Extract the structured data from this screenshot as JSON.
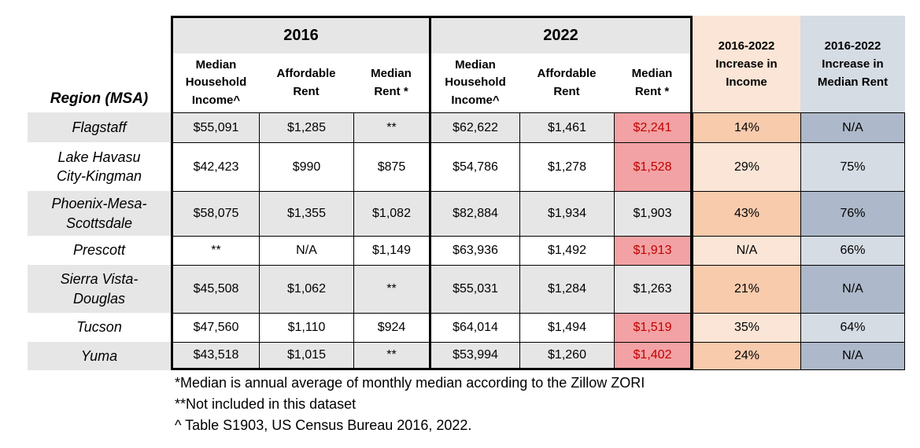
{
  "table": {
    "region_header": "Region (MSA)",
    "groups": [
      {
        "label": "2016",
        "columns": [
          "Median Household Income^",
          "Affordable Rent",
          "Median Rent *"
        ]
      },
      {
        "label": "2022",
        "columns": [
          "Median Household Income^",
          "Affordable Rent",
          "Median Rent *"
        ]
      }
    ],
    "increase_income_header": "2016-2022 Increase in Income",
    "increase_rent_header": "2016-2022 Increase in Median Rent",
    "rows": [
      {
        "region": "Flagstaff",
        "y2016_income": "$55,091",
        "y2016_affordable": "$1,285",
        "y2016_median": "**",
        "y2022_income": "$62,622",
        "y2022_affordable": "$1,461",
        "y2022_median": "$2,241",
        "income_increase": "14%",
        "rent_increase": "N/A"
      },
      {
        "region": "Lake Havasu City-Kingman",
        "y2016_income": "$42,423",
        "y2016_affordable": "$990",
        "y2016_median": "$875",
        "y2022_income": "$54,786",
        "y2022_affordable": "$1,278",
        "y2022_median": "$1,528",
        "income_increase": "29%",
        "rent_increase": "75%"
      },
      {
        "region": "Phoenix-Mesa-Scottsdale",
        "y2016_income": "$58,075",
        "y2016_affordable": "$1,355",
        "y2016_median": "$1,082",
        "y2022_income": "$82,884",
        "y2022_affordable": "$1,934",
        "y2022_median": "$1,903",
        "income_increase": "43%",
        "rent_increase": "76%"
      },
      {
        "region": "Prescott",
        "y2016_income": "**",
        "y2016_affordable": "N/A",
        "y2016_median": "$1,149",
        "y2022_income": "$63,936",
        "y2022_affordable": "$1,492",
        "y2022_median": "$1,913",
        "income_increase": "N/A",
        "rent_increase": "66%"
      },
      {
        "region": "Sierra Vista-Douglas",
        "y2016_income": "$45,508",
        "y2016_affordable": "$1,062",
        "y2016_median": "**",
        "y2022_income": "$55,031",
        "y2022_affordable": "$1,284",
        "y2022_median": "$1,263",
        "income_increase": "21%",
        "rent_increase": "N/A"
      },
      {
        "region": "Tucson",
        "y2016_income": "$47,560",
        "y2016_affordable": "$1,110",
        "y2016_median": "$924",
        "y2022_income": "$64,014",
        "y2022_affordable": "$1,494",
        "y2022_median": "$1,519",
        "income_increase": "35%",
        "rent_increase": "64%"
      },
      {
        "region": "Yuma",
        "y2016_income": "$43,518",
        "y2016_affordable": "$1,015",
        "y2016_median": "**",
        "y2022_income": "$53,994",
        "y2022_affordable": "$1,260",
        "y2022_median": "$1,402",
        "income_increase": "24%",
        "rent_increase": "N/A"
      }
    ]
  },
  "footnotes": [
    "*Median is annual average of monthly median according to the Zillow ZORI",
    "**Not included in this dataset",
    "^ Table S1903, US Census Bureau 2016, 2022."
  ],
  "colors": {
    "row_shade_gray": "#E7E6E6",
    "rent_alert_bg": "#F2A2A4",
    "rent_alert_text": "#C00000",
    "income_increase_dark": "#F8CBAD",
    "income_increase_light": "#FBE5D6",
    "rent_increase_dark": "#ADB9CA",
    "rent_increase_light": "#D6DCE4",
    "border_black": "#000000"
  }
}
